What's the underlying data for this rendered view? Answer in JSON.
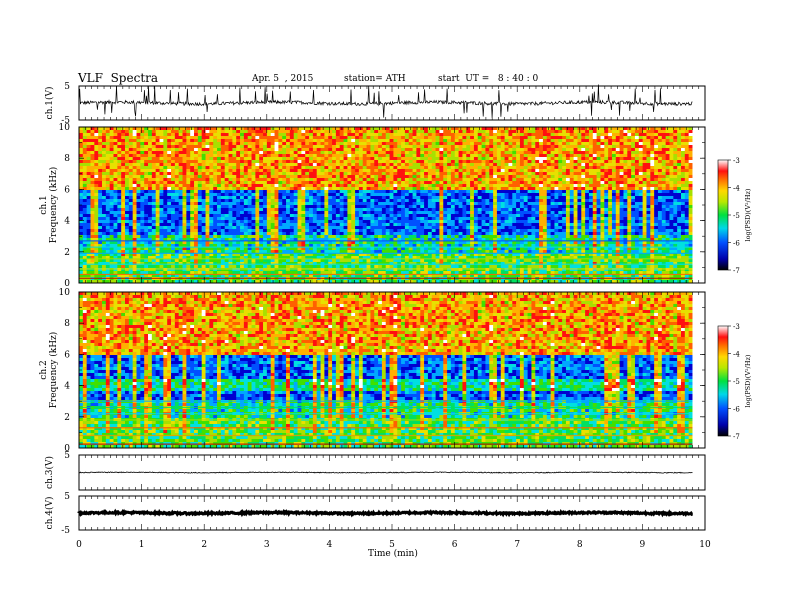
{
  "header": {
    "title": "VLF  Spectra",
    "date": "Apr. 5  , 2015",
    "station": "station= ATH",
    "start": "start  UT =   8 : 40 : 0"
  },
  "colorbar": {
    "label": "log(PSD)(V²/Hz)",
    "ticks": [
      "-3",
      "-4",
      "-5",
      "-6",
      "-7"
    ],
    "range": [
      -7,
      -3
    ]
  },
  "chart_data": [
    {
      "type": "line",
      "id": "ch1-waveform",
      "ylabel": "ch.1(V)",
      "ylim": [
        -5,
        5
      ],
      "yticks": [
        "5",
        "-5"
      ],
      "baseline": 0,
      "description_of_series": "noisy VLF waveform around 0 V with frequent spikes",
      "xlim": [
        0,
        10
      ],
      "data_end_min": 9.8
    },
    {
      "type": "heatmap",
      "id": "ch1-spectrogram",
      "ylabel": "ch.1 Frequency (kHz)",
      "ylim": [
        0,
        10
      ],
      "yticks": [
        "10",
        "8",
        "6",
        "4",
        "2",
        "0"
      ],
      "xlim": [
        0,
        10
      ],
      "data_end_min": 9.8,
      "colorscale": "log(PSD)(V²/Hz)",
      "zlim": [
        -7,
        -3
      ]
    },
    {
      "type": "heatmap",
      "id": "ch2-spectrogram",
      "ylabel": "ch.2 Frequency (kHz)",
      "ylim": [
        0,
        10
      ],
      "yticks": [
        "10",
        "8",
        "6",
        "4",
        "2",
        "0"
      ],
      "xlim": [
        0,
        10
      ],
      "data_end_min": 9.8,
      "colorscale": "log(PSD)(V²/Hz)",
      "zlim": [
        -7,
        -3
      ]
    },
    {
      "type": "line",
      "id": "ch3-waveform",
      "ylabel": "ch.3(V)",
      "ylim": [
        -5,
        5
      ],
      "yticks": [
        "5"
      ],
      "baseline": 0,
      "xlim": [
        0,
        10
      ],
      "data_end_min": 9.8
    },
    {
      "type": "line",
      "id": "ch4-waveform",
      "ylabel": "ch.4(V)",
      "ylim": [
        -5,
        5
      ],
      "yticks": [
        "5",
        "-5"
      ],
      "baseline": 0,
      "xlim": [
        0,
        10
      ],
      "data_end_min": 9.8
    }
  ],
  "xaxis": {
    "label": "Time  (min)",
    "range": [
      0,
      10
    ],
    "ticks": [
      "0",
      "1",
      "2",
      "3",
      "4",
      "5",
      "6",
      "7",
      "8",
      "9",
      "10"
    ]
  }
}
